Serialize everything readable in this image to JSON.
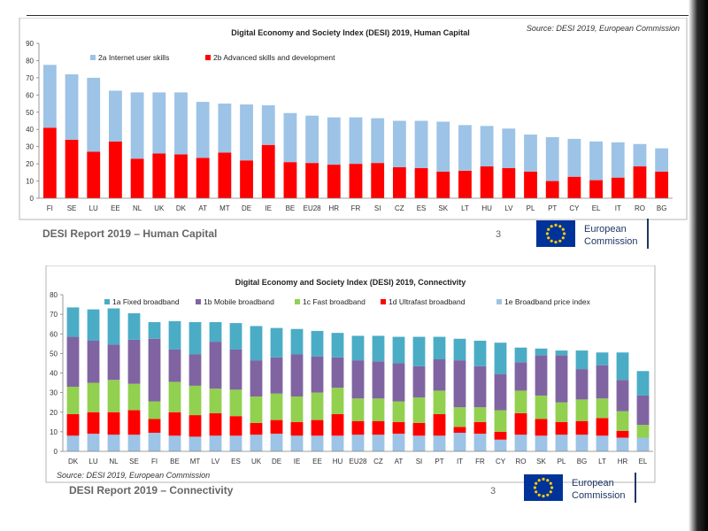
{
  "slides": [
    {
      "footer_title": "DESI Report 2019 – Human Capital",
      "page_number": "3",
      "logo_text": [
        "European",
        "Commission"
      ],
      "chart_data": {
        "type": "bar",
        "stacked": true,
        "title": "Digital Economy and Society Index (DESI) 2019, Human Capital",
        "source": "Source: DESI 2019, European Commission",
        "categories": [
          "FI",
          "SE",
          "LU",
          "EE",
          "NL",
          "UK",
          "DK",
          "AT",
          "MT",
          "DE",
          "IE",
          "BE",
          "EU28",
          "HR",
          "FR",
          "SI",
          "CZ",
          "ES",
          "SK",
          "LT",
          "HU",
          "LV",
          "PL",
          "PT",
          "CY",
          "EL",
          "IT",
          "RO",
          "BG"
        ],
        "series": [
          {
            "name": "2b Advanced skills and development",
            "color": "#ff0000",
            "values": [
              41,
              34,
              27,
              33,
              23,
              26,
              25.5,
              23.5,
              26.5,
              22,
              31,
              21,
              20.5,
              19.5,
              20,
              20.5,
              18,
              17.5,
              15.5,
              16,
              18.5,
              17.5,
              15.5,
              10,
              12.5,
              10.5,
              12,
              18.5,
              15.5
            ]
          },
          {
            "name": "2a Internet user skills",
            "color": "#9dc3e6",
            "values": [
              36.5,
              38,
              43,
              29.5,
              38.5,
              35.5,
              36,
              32.5,
              28.5,
              32.5,
              23,
              28.5,
              27.5,
              27.5,
              27,
              26,
              27,
              27.5,
              29,
              26.5,
              23.5,
              23,
              21.5,
              25.5,
              22,
              22.5,
              20.5,
              13,
              13.5
            ]
          }
        ],
        "legend_order": [
          1,
          0
        ],
        "ylim": [
          0,
          90
        ],
        "yticks": [
          0,
          10,
          20,
          30,
          40,
          50,
          60,
          70,
          80,
          90
        ],
        "grid": false,
        "legend_position": "top-left"
      }
    },
    {
      "footer_title": "DESI Report 2019 – Connectivity",
      "page_number": "3",
      "logo_text": [
        "European",
        "Commission"
      ],
      "chart_data": {
        "type": "bar",
        "stacked": true,
        "title": "Digital Economy and Society Index (DESI) 2019, Connectivity",
        "source": "Source: DESI 2019, European Commission",
        "categories": [
          "DK",
          "LU",
          "NL",
          "SE",
          "FI",
          "BE",
          "MT",
          "LV",
          "ES",
          "UK",
          "DE",
          "IE",
          "EE",
          "HU",
          "EU28",
          "CZ",
          "AT",
          "SI",
          "PT",
          "IT",
          "FR",
          "CY",
          "RO",
          "SK",
          "PL",
          "BG",
          "LT",
          "HR",
          "EL"
        ],
        "series": [
          {
            "name": "1e Broadband price index",
            "color": "#9dc3e6",
            "values": [
              8,
              9,
              8.5,
              8.5,
              9.5,
              8,
              7.5,
              8,
              8,
              8.5,
              9,
              8,
              8,
              8,
              8.5,
              8.5,
              9,
              8,
              8,
              9.5,
              9,
              6,
              8.5,
              8,
              8.5,
              8.5,
              8,
              7,
              7
            ]
          },
          {
            "name": "1d Ultrafast broadband",
            "color": "#ff0000",
            "values": [
              11,
              11,
              11.5,
              12.5,
              7,
              12,
              11,
              11.5,
              10,
              6,
              7,
              7,
              8,
              11,
              7,
              7,
              6,
              6.5,
              11,
              3,
              6,
              4,
              11,
              8.5,
              6.5,
              7,
              9,
              3.5,
              0
            ]
          },
          {
            "name": "1c Fast broadband",
            "color": "#92d050",
            "values": [
              14,
              15,
              16.5,
              13.5,
              9,
              15.5,
              15,
              12.5,
              13.5,
              13.5,
              13.5,
              13,
              14,
              13.5,
              11.5,
              11.5,
              10.5,
              13,
              12,
              10,
              7.5,
              11,
              11.5,
              12,
              10,
              11,
              10,
              10,
              6.5
            ]
          },
          {
            "name": "1b Mobile broadband",
            "color": "#8064a2",
            "values": [
              25.5,
              21.5,
              18,
              22.5,
              32,
              16.5,
              16,
              24,
              20.5,
              18.5,
              18.5,
              21.5,
              18.5,
              15.5,
              19.5,
              19,
              19.5,
              16,
              16,
              24,
              21,
              18.5,
              14.5,
              20.5,
              24,
              15.5,
              17,
              16,
              15
            ]
          },
          {
            "name": "1a Fixed broadband",
            "color": "#4bacc6",
            "values": [
              15,
              16,
              18.5,
              13.5,
              8.5,
              14.5,
              16.5,
              10,
              13.5,
              17.5,
              15,
              13,
              13,
              12.5,
              12.5,
              13,
              13.5,
              15,
              11.5,
              11,
              13,
              16,
              7.5,
              3.5,
              2.5,
              9.5,
              6.5,
              14,
              12.5
            ]
          }
        ],
        "legend_order": [
          4,
          3,
          2,
          1,
          0
        ],
        "ylim": [
          0,
          80
        ],
        "yticks": [
          0,
          10,
          20,
          30,
          40,
          50,
          60,
          70,
          80
        ],
        "grid": false,
        "legend_position": "top"
      }
    }
  ]
}
